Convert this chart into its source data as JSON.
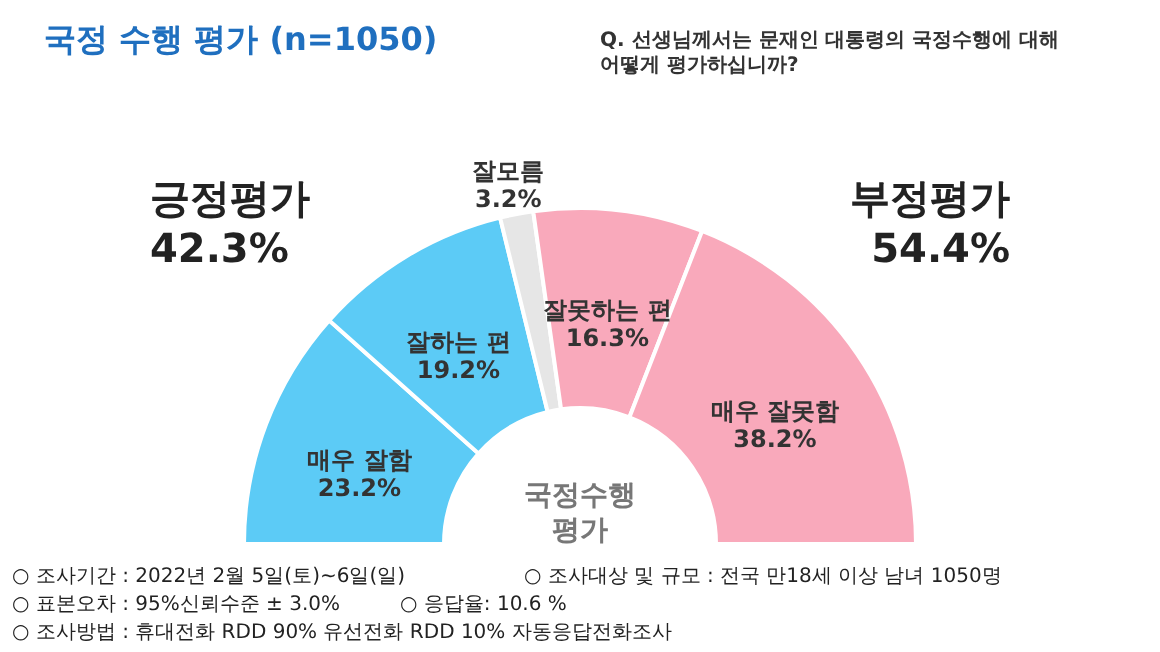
{
  "chart_data": {
    "type": "donut",
    "title": "국정 수행 평가 (n=1050)",
    "subtitle": "Q. 선생님께서는 문재인 대통령의 국정수행에 대해 어떻게 평가하십니까?",
    "categories": [
      "매우 잘함",
      "잘하는 편",
      "잘모름",
      "잘못하는 편",
      "매우 잘못함"
    ],
    "values": [
      23.2,
      19.2,
      3.2,
      16.3,
      38.2
    ],
    "value_labels": [
      "23.2%",
      "19.2%",
      "3.2%",
      "16.3%",
      "38.2%"
    ],
    "colors": [
      "#5ccbf6",
      "#5ccbf6",
      "#e6e6e6",
      "#f9a9bb",
      "#f9a9bb"
    ],
    "annotations": [
      "긍정평가\n42.3%",
      "부정평가\n54.4%",
      "국정수행\n평가",
      "○ 조사기간 : 2022년 2월 5일(토)~6일(일)",
      "○ 조사대상 및 규모 : 전국 만18세 이상 남녀 1050명",
      "○ 표본오차 : 95%신뢰수준 ± 3.0%",
      "○ 응답율: 10.6 %",
      "○ 조사방법 : 휴대전화 RDD 90% 유선전화 RDD 10% 자동응답전화조사"
    ]
  }
}
